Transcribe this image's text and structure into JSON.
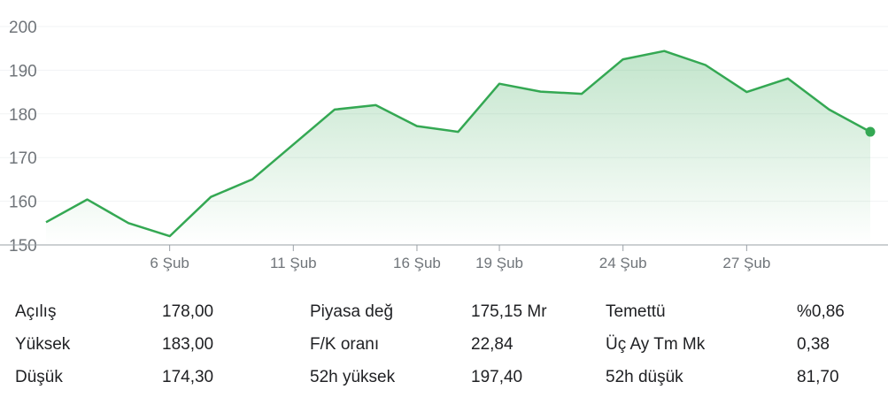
{
  "chart_data": {
    "type": "area",
    "x_tick_labels": [
      "6 Şub",
      "11 Şub",
      "16 Şub",
      "19 Şub",
      "24 Şub",
      "27 Şub"
    ],
    "y_ticks": [
      150,
      160,
      170,
      180,
      190,
      200
    ],
    "ylim": [
      150,
      200
    ],
    "grid": true,
    "line_color": "#34a853",
    "values": [
      155.2,
      160.4,
      155.0,
      152.0,
      161.0,
      165.0,
      173.0,
      181.0,
      182.0,
      177.2,
      175.9,
      186.9,
      185.1,
      184.6,
      192.5,
      194.4,
      191.2,
      185.0,
      188.1,
      181.0,
      175.9
    ],
    "tick_indices": [
      3,
      6,
      9,
      11,
      14,
      17
    ]
  },
  "stats": [
    [
      {
        "label": "Açılış",
        "value": "178,00"
      },
      {
        "label": "Piyasa değ",
        "value": "175,15 Mr"
      },
      {
        "label": "Temettü",
        "value": "%0,86"
      }
    ],
    [
      {
        "label": "Yüksek",
        "value": "183,00"
      },
      {
        "label": "F/K oranı",
        "value": "22,84"
      },
      {
        "label": "Üç Ay Tm Mk",
        "value": "0,38"
      }
    ],
    [
      {
        "label": "Düşük",
        "value": "174,30"
      },
      {
        "label": "52h yüksek",
        "value": "197,40"
      },
      {
        "label": "52h düşük",
        "value": "81,70"
      }
    ]
  ]
}
